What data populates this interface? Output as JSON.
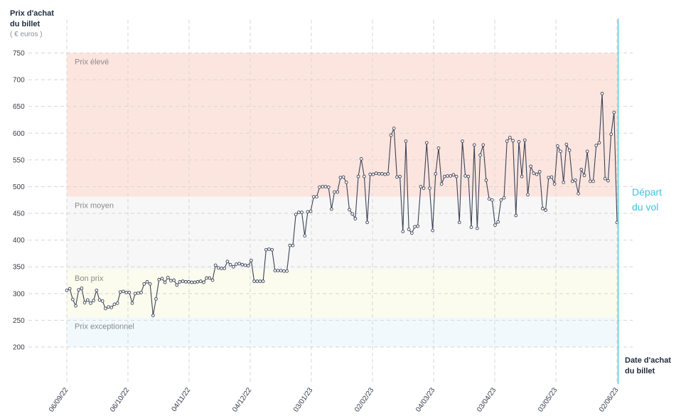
{
  "chart_data": {
    "type": "line",
    "y_axis": {
      "title_lines": [
        "Prix d'achat",
        "du billet"
      ],
      "unit": "( € euros )",
      "ticks": [
        200,
        250,
        300,
        350,
        400,
        450,
        500,
        550,
        600,
        650,
        700,
        750
      ],
      "ylim": [
        200,
        750
      ]
    },
    "x_axis": {
      "title_lines": [
        "Date d'achat",
        "du billet"
      ],
      "tick_labels": [
        "06/09/22",
        "06/10/22",
        "04/11/22",
        "04/12/22",
        "03/01/23",
        "02/02/23",
        "04/03/23",
        "03/04/23",
        "03/05/23",
        "02/06/23"
      ],
      "xlim": [
        "06/09/22",
        "02/06/23"
      ]
    },
    "zones": [
      {
        "label": "Prix élevé",
        "from": 481,
        "to": 750,
        "color": "#fde5df"
      },
      {
        "label": "Prix moyen",
        "from": 345,
        "to": 481,
        "color": "#f7f7f7"
      },
      {
        "label": "Bon prix",
        "from": 255,
        "to": 345,
        "color": "#fbfbee"
      },
      {
        "label": "Prix exceptionnel",
        "from": 200,
        "to": 255,
        "color": "#f1f9fd"
      }
    ],
    "departure": {
      "label_lines": [
        "Départ",
        "du vol"
      ],
      "color": "#3ec3dc"
    },
    "series": [
      {
        "color": "#3a4256",
        "values": [
          306,
          309,
          289,
          277,
          307,
          310,
          283,
          288,
          282,
          287,
          306,
          288,
          286,
          272,
          275,
          274,
          280,
          282,
          303,
          304,
          302,
          302,
          282,
          300,
          301,
          302,
          318,
          322,
          318,
          259,
          290,
          326,
          328,
          321,
          330,
          324,
          325,
          316,
          322,
          323,
          322,
          322,
          321,
          321,
          322,
          323,
          321,
          329,
          329,
          325,
          353,
          348,
          347,
          347,
          360,
          354,
          350,
          355,
          356,
          354,
          353,
          352,
          362,
          323,
          323,
          323,
          323,
          382,
          383,
          382,
          343,
          343,
          343,
          342,
          342,
          390,
          390,
          448,
          452,
          452,
          408,
          453,
          454,
          481,
          481,
          499,
          500,
          500,
          499,
          458,
          490,
          490,
          517,
          518,
          508,
          457,
          449,
          440,
          519,
          552,
          519,
          433,
          523,
          523,
          525,
          524,
          524,
          523,
          524,
          596,
          609,
          518,
          519,
          416,
          585,
          420,
          413,
          425,
          426,
          500,
          497,
          582,
          497,
          418,
          524,
          572,
          505,
          519,
          520,
          520,
          522,
          519,
          433,
          585,
          520,
          519,
          424,
          578,
          422,
          559,
          578,
          512,
          477,
          475,
          428,
          434,
          475,
          479,
          585,
          592,
          586,
          446,
          584,
          519,
          587,
          485,
          538,
          525,
          523,
          528,
          459,
          456,
          517,
          518,
          505,
          576,
          566,
          508,
          579,
          568,
          510,
          512,
          487,
          532,
          521,
          566,
          510,
          510,
          577,
          582,
          674,
          515,
          511,
          598,
          639,
          433
        ]
      }
    ]
  }
}
